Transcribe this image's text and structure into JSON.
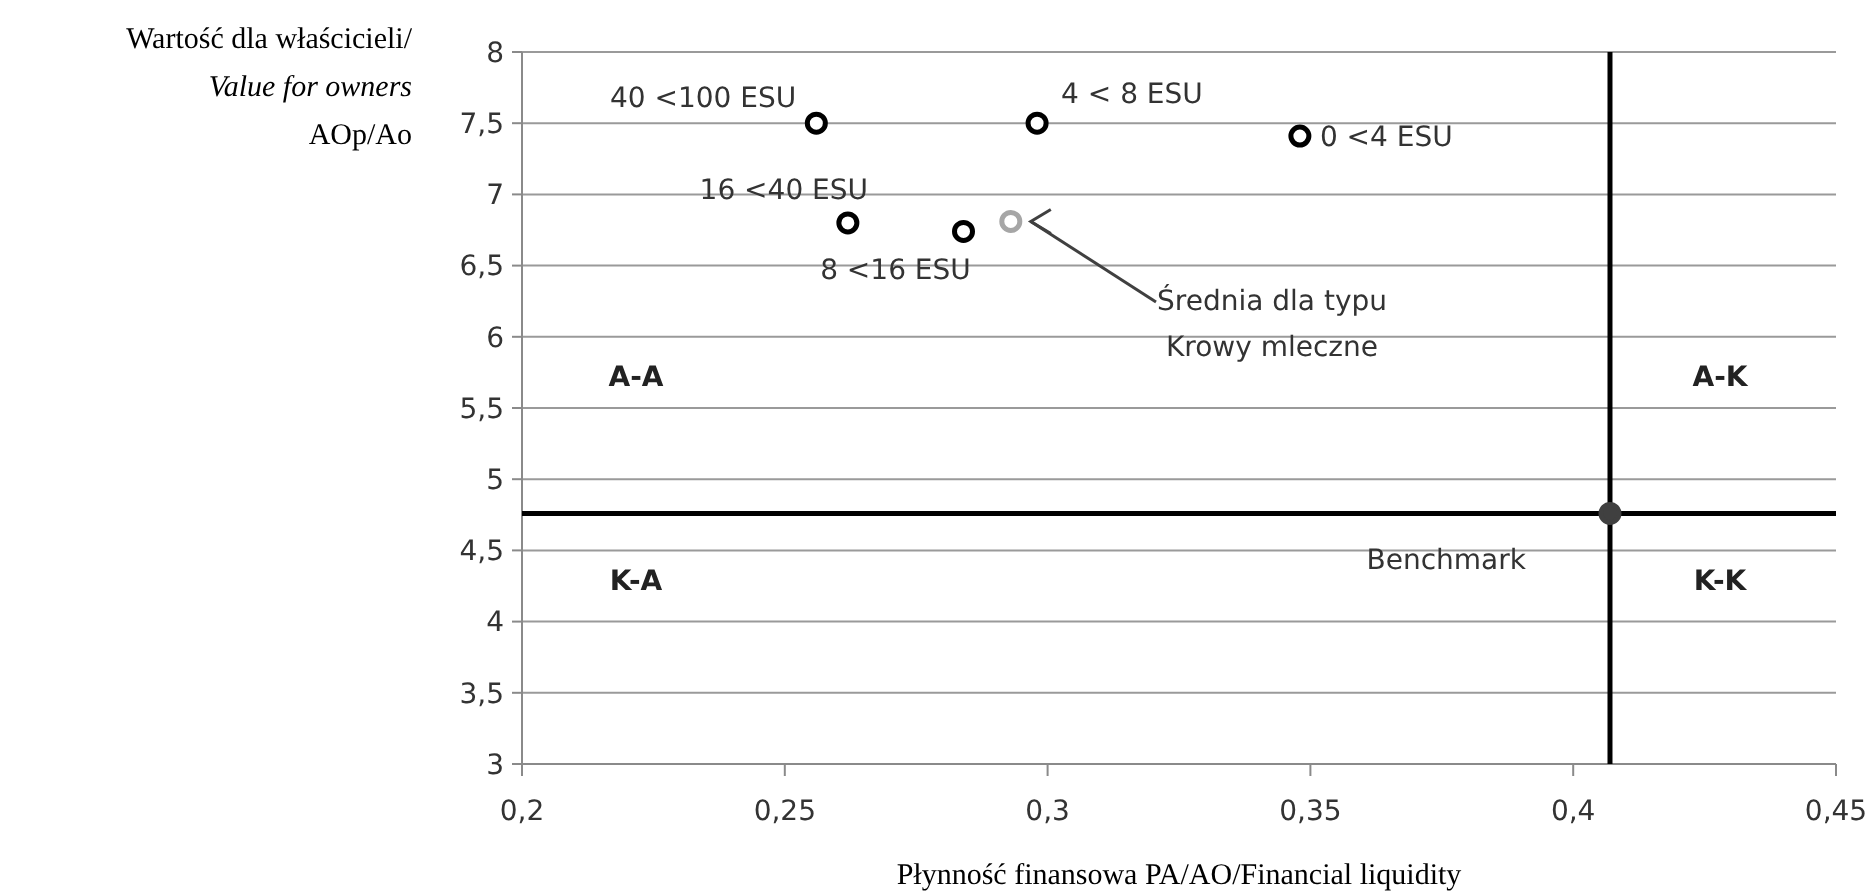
{
  "chart_data": {
    "type": "scatter",
    "xlabel": "Płynność finansowa PA/AO/Financial liquidity",
    "ylabel": "Wartość dla właścicieli/\nValue for owners\nAOp/Ao",
    "xlim": [
      0.2,
      0.45
    ],
    "xticks": [
      {
        "value": 0.2,
        "label": "0,2"
      },
      {
        "value": 0.25,
        "label": "0,25"
      },
      {
        "value": 0.3,
        "label": "0,3"
      },
      {
        "value": 0.35,
        "label": "0,35"
      },
      {
        "value": 0.4,
        "label": "0,4"
      },
      {
        "value": 0.45,
        "label": "0,45"
      }
    ],
    "ylim": [
      3,
      8
    ],
    "yticks": [
      3,
      {
        "value": 3.5,
        "label": "3,5"
      },
      4,
      {
        "value": 4.5,
        "label": "4,5"
      },
      5,
      {
        "value": 5.5,
        "label": "5,5"
      },
      6,
      {
        "value": 6.5,
        "label": "6,5"
      },
      7,
      {
        "value": 7.5,
        "label": "7,5"
      },
      8
    ],
    "grid": "y",
    "marker": "circle",
    "series": [
      {
        "name": "40 <100 ESU",
        "color": "#000000",
        "x": [
          0.256
        ],
        "values": [
          7.5
        ]
      },
      {
        "name": "4 < 8 ESU",
        "color": "#000000",
        "x": [
          0.298
        ],
        "values": [
          7.5
        ]
      },
      {
        "name": "0 <4 ESU",
        "color": "#000000",
        "x": [
          0.348
        ],
        "values": [
          7.41
        ]
      },
      {
        "name": "16 <40 ESU",
        "color": "#000000",
        "x": [
          0.262
        ],
        "values": [
          6.8
        ]
      },
      {
        "name": "8 <16 ESU",
        "color": "#000000",
        "x": [
          0.284
        ],
        "values": [
          6.74
        ]
      },
      {
        "color": "#a6a6a6",
        "x": [
          0.293
        ],
        "values": [
          6.81
        ]
      },
      {
        "name": "Benchmark",
        "color": "#404040",
        "x": [
          0.407
        ],
        "values": [
          4.76
        ]
      }
    ],
    "ref_lines": [
      {
        "axis": "x",
        "value": 0.407,
        "color": "#000000"
      },
      {
        "axis": "y",
        "value": 4.76,
        "color": "#000000"
      }
    ],
    "annotations": [
      "Średnia dla typu\nKrowy mleczne",
      "A-A",
      "K-A",
      "A-K",
      "K-K"
    ]
  }
}
